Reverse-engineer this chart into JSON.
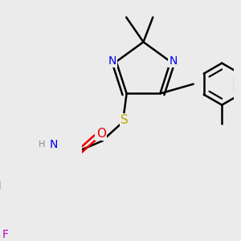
{
  "bg_color": "#ebebeb",
  "bond_color": "#000000",
  "bond_width": 1.8,
  "dbo": 0.045,
  "atom_colors": {
    "N": "#0000ee",
    "O": "#ee0000",
    "S": "#bbaa00",
    "Cl": "#228822",
    "F": "#bb00bb",
    "H": "#888888",
    "C": "#000000"
  },
  "font_size": 10
}
